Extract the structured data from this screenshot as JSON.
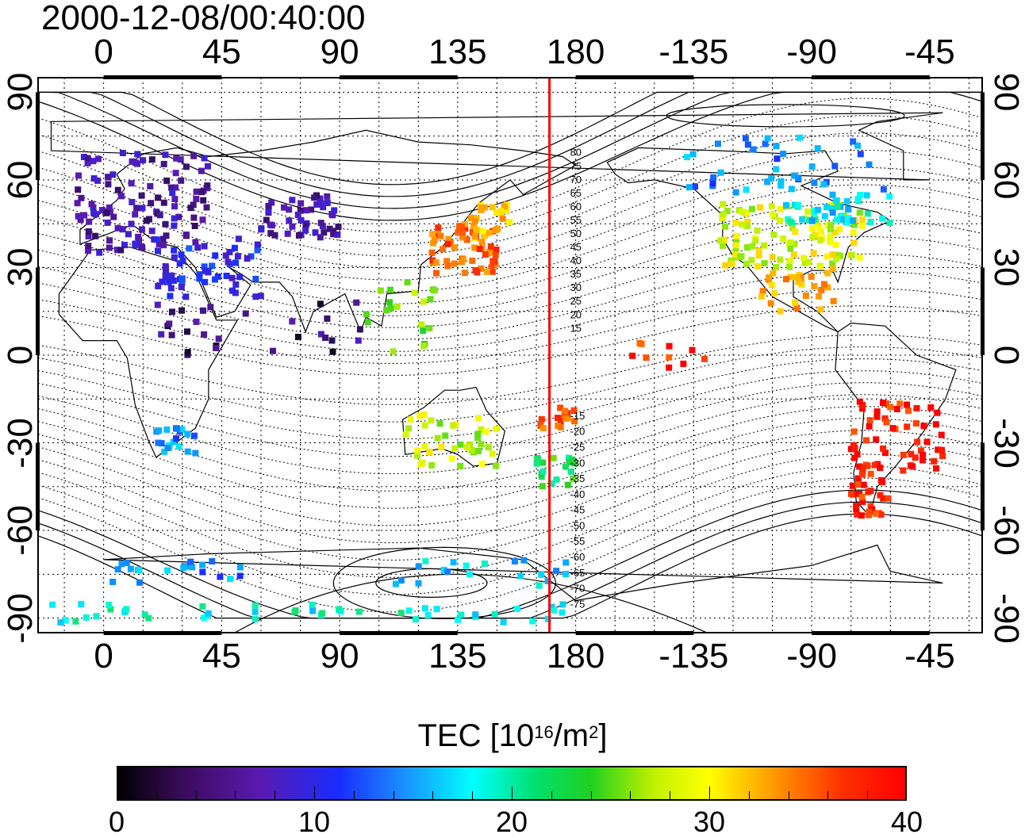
{
  "title": "2000-12-08/00:40:00",
  "map": {
    "top_lon_ticks": [
      "0",
      "45",
      "90",
      "135",
      "180",
      "-135",
      "-90",
      "-45"
    ],
    "bottom_lon_ticks": [
      "0",
      "45",
      "90",
      "135",
      "180",
      "-135",
      "-90",
      "-45"
    ],
    "left_lat_ticks": [
      "90",
      "60",
      "30",
      "0",
      "-30",
      "-60",
      "-90"
    ],
    "right_lat_ticks": [
      "90",
      "60",
      "30",
      "0",
      "-30",
      "-60",
      "-90"
    ],
    "grid": "dotted",
    "projection": "equirectangular",
    "lon_range_deg": [
      -25,
      335
    ],
    "lat_range_deg": [
      -95,
      95
    ],
    "meridian_marker": {
      "lon": 170,
      "color": "#ff0000"
    },
    "contour_labels": [
      "80",
      "75",
      "70",
      "65",
      "60",
      "55",
      "50",
      "45",
      "40",
      "35",
      "30",
      "25",
      "20",
      "15",
      "-15",
      "-20",
      "-25",
      "-30",
      "-35",
      "-40",
      "-45",
      "-50",
      "-55",
      "-60",
      "-65",
      "-70",
      "-75"
    ]
  },
  "colorbar": {
    "title_text": "TEC  [10",
    "title_sup1": "16",
    "title_mid": "/m",
    "title_sup2": "2",
    "title_end": "]",
    "ticks": [
      "0",
      "10",
      "20",
      "30",
      "40"
    ],
    "range": [
      0,
      40
    ],
    "colors": [
      "#000000",
      "#5a1ab0",
      "#1a2cff",
      "#00ffff",
      "#20d020",
      "#ffff00",
      "#ff9000",
      "#ff0000"
    ]
  }
}
